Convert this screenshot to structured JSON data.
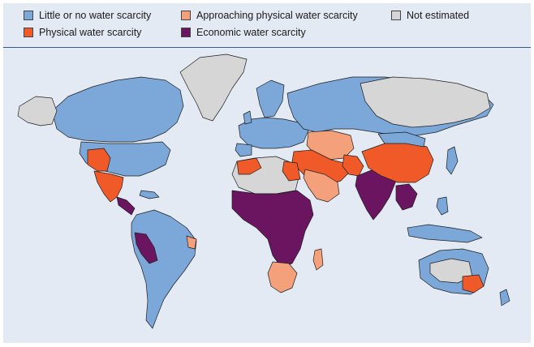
{
  "legend": {
    "items": [
      {
        "label": "Little or no water scarcity",
        "color": "#7ba7d9"
      },
      {
        "label": "Approaching physical water scarcity",
        "color": "#f4a07a"
      },
      {
        "label": "Not estimated",
        "color": "#d6d6d6"
      },
      {
        "label": "Physical water scarcity",
        "color": "#ef5a28"
      },
      {
        "label": "Economic water scarcity",
        "color": "#6b1560"
      }
    ]
  },
  "colors": {
    "little": "#7ba7d9",
    "approaching": "#f4a07a",
    "physical": "#ef5a28",
    "economic": "#6b1560",
    "not_estimated": "#d6d6d6",
    "background": "#e3eaf3"
  }
}
